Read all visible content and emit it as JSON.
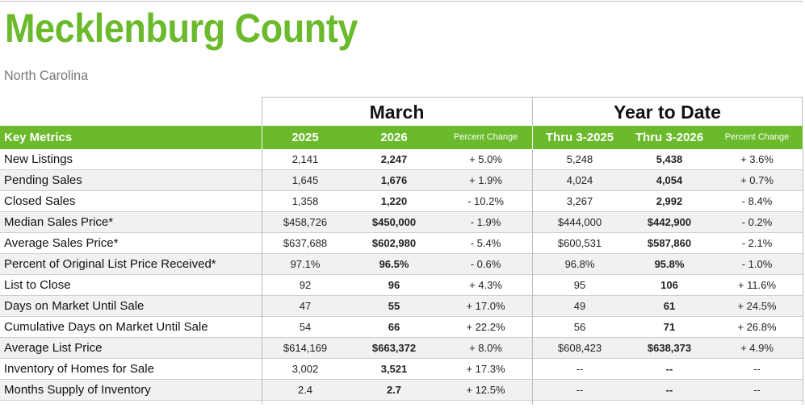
{
  "title": "Mecklenburg County",
  "subtitle": "North Carolina",
  "groups": {
    "march": "March",
    "ytd": "Year to Date"
  },
  "header": {
    "key": "Key Metrics",
    "c1": "2025",
    "c2": "2026",
    "c3": "Percent Change",
    "c4": "Thru 3-2025",
    "c5": "Thru 3-2026",
    "c6": "Percent Change"
  },
  "colors": {
    "accent": "#6aba2b",
    "row_alt": "#f1f1f1",
    "rule": "#bdbdbd"
  },
  "rows": [
    {
      "metric": "New Listings",
      "m2025": "2,141",
      "m2026": "2,247",
      "mchg": "+ 5.0%",
      "y2025": "5,248",
      "y2026": "5,438",
      "ychg": "+ 3.6%"
    },
    {
      "metric": "Pending Sales",
      "m2025": "1,645",
      "m2026": "1,676",
      "mchg": "+ 1.9%",
      "y2025": "4,024",
      "y2026": "4,054",
      "ychg": "+ 0.7%"
    },
    {
      "metric": "Closed Sales",
      "m2025": "1,358",
      "m2026": "1,220",
      "mchg": "- 10.2%",
      "y2025": "3,267",
      "y2026": "2,992",
      "ychg": "- 8.4%"
    },
    {
      "metric": "Median Sales Price*",
      "m2025": "$458,726",
      "m2026": "$450,000",
      "mchg": "- 1.9%",
      "y2025": "$444,000",
      "y2026": "$442,900",
      "ychg": "- 0.2%"
    },
    {
      "metric": "Average Sales Price*",
      "m2025": "$637,688",
      "m2026": "$602,980",
      "mchg": "- 5.4%",
      "y2025": "$600,531",
      "y2026": "$587,860",
      "ychg": "- 2.1%"
    },
    {
      "metric": "Percent of Original List Price Received*",
      "m2025": "97.1%",
      "m2026": "96.5%",
      "mchg": "- 0.6%",
      "y2025": "96.8%",
      "y2026": "95.8%",
      "ychg": "- 1.0%"
    },
    {
      "metric": "List to Close",
      "m2025": "92",
      "m2026": "96",
      "mchg": "+ 4.3%",
      "y2025": "95",
      "y2026": "106",
      "ychg": "+ 11.6%"
    },
    {
      "metric": "Days on Market Until Sale",
      "m2025": "47",
      "m2026": "55",
      "mchg": "+ 17.0%",
      "y2025": "49",
      "y2026": "61",
      "ychg": "+ 24.5%"
    },
    {
      "metric": "Cumulative Days on Market Until Sale",
      "m2025": "54",
      "m2026": "66",
      "mchg": "+ 22.2%",
      "y2025": "56",
      "y2026": "71",
      "ychg": "+ 26.8%"
    },
    {
      "metric": "Average List Price",
      "m2025": "$614,169",
      "m2026": "$663,372",
      "mchg": "+ 8.0%",
      "y2025": "$608,423",
      "y2026": "$638,373",
      "ychg": "+ 4.9%"
    },
    {
      "metric": "Inventory of Homes for Sale",
      "m2025": "3,002",
      "m2026": "3,521",
      "mchg": "+ 17.3%",
      "y2025": "--",
      "y2026": "--",
      "ychg": "--"
    },
    {
      "metric": "Months Supply of Inventory",
      "m2025": "2.4",
      "m2026": "2.7",
      "mchg": "+ 12.5%",
      "y2025": "--",
      "y2026": "--",
      "ychg": "--"
    }
  ]
}
